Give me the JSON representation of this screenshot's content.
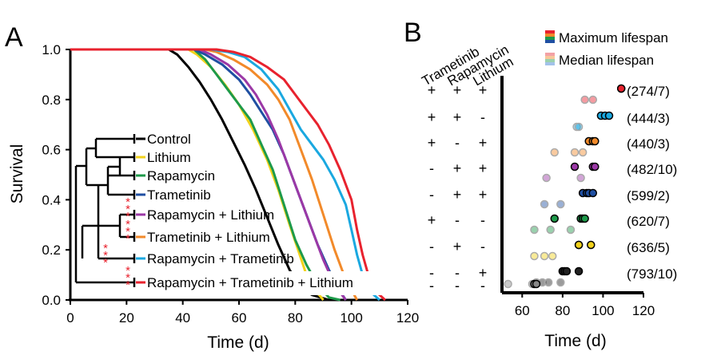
{
  "panels": {
    "a_letter": "A",
    "b_letter": "B"
  },
  "chart_data": [
    {
      "type": "line",
      "panel": "A",
      "xlabel": "Time (d)",
      "ylabel": "Survival",
      "xlim": [
        0,
        120
      ],
      "ylim": [
        0,
        1.0
      ],
      "xticks": [
        "0",
        "20",
        "40",
        "60",
        "80",
        "100",
        "120"
      ],
      "yticks": [
        "0.0",
        "0.2",
        "0.4",
        "0.6",
        "0.8",
        "1.0"
      ],
      "grid": false,
      "legend_position": "bottom-left",
      "series": [
        {
          "name": "Control",
          "color": "#000000",
          "points": [
            [
              0,
              1
            ],
            [
              35,
              1
            ],
            [
              38,
              0.98
            ],
            [
              42,
              0.93
            ],
            [
              46,
              0.87
            ],
            [
              50,
              0.8
            ],
            [
              54,
              0.72
            ],
            [
              58,
              0.63
            ],
            [
              62,
              0.54
            ],
            [
              66,
              0.44
            ],
            [
              70,
              0.33
            ],
            [
              74,
              0.22
            ],
            [
              78,
              0.12
            ],
            [
              82,
              0.05
            ],
            [
              86,
              0.02
            ],
            [
              92,
              0
            ]
          ]
        },
        {
          "name": "Lithium",
          "color": "#f2d21b",
          "points": [
            [
              0,
              1
            ],
            [
              42,
              1
            ],
            [
              45,
              0.98
            ],
            [
              50,
              0.93
            ],
            [
              55,
              0.86
            ],
            [
              60,
              0.78
            ],
            [
              65,
              0.68
            ],
            [
              70,
              0.56
            ],
            [
              74,
              0.44
            ],
            [
              78,
              0.3
            ],
            [
              81,
              0.2
            ],
            [
              84,
              0.1
            ],
            [
              87,
              0.04
            ],
            [
              90,
              0
            ]
          ]
        },
        {
          "name": "Rapamycin",
          "color": "#1d9a4a",
          "points": [
            [
              0,
              1
            ],
            [
              44,
              1
            ],
            [
              48,
              0.96
            ],
            [
              52,
              0.9
            ],
            [
              56,
              0.84
            ],
            [
              60,
              0.78
            ],
            [
              64,
              0.72
            ],
            [
              68,
              0.62
            ],
            [
              72,
              0.52
            ],
            [
              76,
              0.38
            ],
            [
              80,
              0.24
            ],
            [
              84,
              0.14
            ],
            [
              88,
              0.06
            ],
            [
              92,
              0.01
            ],
            [
              96,
              0
            ]
          ]
        },
        {
          "name": "Trametinib",
          "color": "#1f4fa2",
          "points": [
            [
              0,
              1
            ],
            [
              44,
              1
            ],
            [
              48,
              0.98
            ],
            [
              54,
              0.94
            ],
            [
              60,
              0.88
            ],
            [
              64,
              0.82
            ],
            [
              68,
              0.75
            ],
            [
              72,
              0.68
            ],
            [
              76,
              0.58
            ],
            [
              80,
              0.46
            ],
            [
              84,
              0.34
            ],
            [
              88,
              0.22
            ],
            [
              92,
              0.12
            ],
            [
              95,
              0.05
            ],
            [
              98,
              0
            ]
          ]
        },
        {
          "name": "Rapamycin + Lithium",
          "color": "#9b38a6",
          "points": [
            [
              0,
              1
            ],
            [
              46,
              1
            ],
            [
              50,
              0.98
            ],
            [
              56,
              0.94
            ],
            [
              62,
              0.88
            ],
            [
              66,
              0.82
            ],
            [
              70,
              0.74
            ],
            [
              74,
              0.64
            ],
            [
              78,
              0.52
            ],
            [
              82,
              0.4
            ],
            [
              86,
              0.28
            ],
            [
              90,
              0.16
            ],
            [
              94,
              0.06
            ],
            [
              98,
              0
            ]
          ]
        },
        {
          "name": "Trametinib + Lithium",
          "color": "#f28a2a",
          "points": [
            [
              0,
              1
            ],
            [
              48,
              1
            ],
            [
              52,
              0.99
            ],
            [
              58,
              0.96
            ],
            [
              64,
              0.92
            ],
            [
              70,
              0.86
            ],
            [
              74,
              0.8
            ],
            [
              78,
              0.72
            ],
            [
              82,
              0.6
            ],
            [
              86,
              0.48
            ],
            [
              90,
              0.34
            ],
            [
              94,
              0.2
            ],
            [
              98,
              0.08
            ],
            [
              102,
              0
            ]
          ]
        },
        {
          "name": "Rapamycin + Trametinib",
          "color": "#1aa8e0",
          "points": [
            [
              0,
              1
            ],
            [
              50,
              1
            ],
            [
              56,
              0.99
            ],
            [
              62,
              0.97
            ],
            [
              68,
              0.92
            ],
            [
              74,
              0.84
            ],
            [
              78,
              0.76
            ],
            [
              82,
              0.68
            ],
            [
              86,
              0.62
            ],
            [
              90,
              0.56
            ],
            [
              94,
              0.48
            ],
            [
              98,
              0.38
            ],
            [
              100,
              0.28
            ],
            [
              102,
              0.18
            ],
            [
              104,
              0.1
            ],
            [
              106,
              0.04
            ],
            [
              110,
              0
            ]
          ]
        },
        {
          "name": "Rapamycin + Trametinib + Lithium",
          "color": "#e8222e",
          "points": [
            [
              0,
              1
            ],
            [
              52,
              1
            ],
            [
              58,
              0.99
            ],
            [
              64,
              0.97
            ],
            [
              70,
              0.93
            ],
            [
              76,
              0.88
            ],
            [
              80,
              0.82
            ],
            [
              84,
              0.76
            ],
            [
              88,
              0.7
            ],
            [
              92,
              0.62
            ],
            [
              96,
              0.52
            ],
            [
              100,
              0.4
            ],
            [
              102,
              0.28
            ],
            [
              104,
              0.18
            ],
            [
              106,
              0.1
            ],
            [
              108,
              0.04
            ],
            [
              112,
              0
            ]
          ]
        }
      ],
      "significance_stars": [
        "***",
        "***",
        "***",
        "***"
      ]
    },
    {
      "type": "scatter",
      "panel": "B",
      "xlabel": "Time (d)",
      "xlim": [
        50,
        120
      ],
      "xticks": [
        "60",
        "80",
        "100",
        "120"
      ],
      "legend": [
        "Maximum lifespan",
        "Median lifespan"
      ],
      "column_headers": [
        "Trametinib",
        "Rapamycin",
        "Lithium"
      ],
      "rows": [
        {
          "signs": [
            "+",
            "+",
            "+"
          ],
          "label": "(274/7)",
          "max": [
            109,
            109
          ],
          "median": [
            91,
            95
          ],
          "color": "#e8222e"
        },
        {
          "signs": [
            "+",
            "+",
            "-"
          ],
          "label": "(444/3)",
          "max": [
            99,
            101,
            103
          ],
          "median": [
            87,
            88
          ],
          "color": "#1aa8e0"
        },
        {
          "signs": [
            "+",
            "-",
            "+"
          ],
          "label": "(440/3)",
          "max": [
            93,
            95,
            96
          ],
          "median": [
            76,
            86,
            90
          ],
          "color": "#f28a2a"
        },
        {
          "signs": [
            "-",
            "+",
            "+"
          ],
          "label": "(482/10)",
          "max": [
            86,
            95,
            96
          ],
          "median": [
            72,
            89
          ],
          "color": "#9b38a6"
        },
        {
          "signs": [
            "-",
            "+",
            "+"
          ],
          "label": "(599/2)",
          "max": [
            90,
            92,
            93,
            95
          ],
          "median": [
            71,
            79
          ],
          "color": "#1f4fa2"
        },
        {
          "signs": [
            "+",
            "-",
            "-"
          ],
          "label": "(620/7)",
          "max": [
            76,
            89,
            90,
            91
          ],
          "median": [
            66,
            74,
            84
          ],
          "color": "#1d9a4a"
        },
        {
          "signs": [
            "-",
            "+",
            "-"
          ],
          "label": "(636/5)",
          "max": [
            88,
            88,
            94
          ],
          "median": [
            66,
            71,
            75
          ],
          "color": "#f2d21b"
        },
        {
          "signs": [
            "-",
            "-",
            "+"
          ],
          "label": "(793/10)",
          "max": [
            80,
            81,
            82,
            88
          ],
          "median": [
            67,
            70,
            73,
            79
          ],
          "color": "#222222"
        },
        {
          "signs": [
            "-",
            "-",
            "-"
          ],
          "label": "",
          "max": [
            66,
            67
          ],
          "median": [
            53,
            65
          ],
          "color": "#888888"
        }
      ]
    }
  ]
}
